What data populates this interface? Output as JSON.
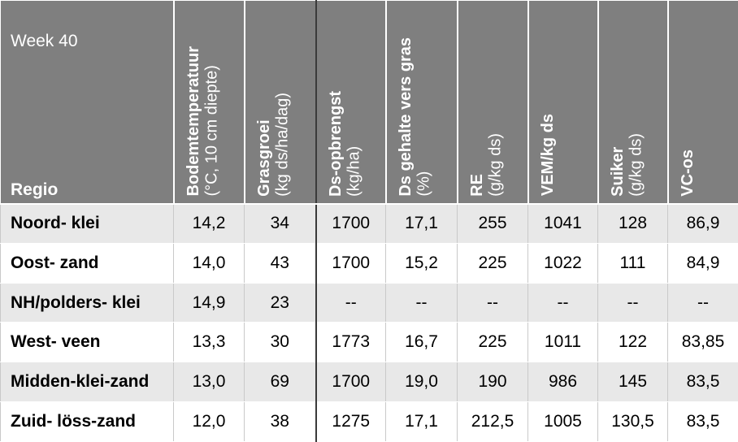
{
  "header": {
    "week": "Week 40",
    "region_label": "Regio",
    "columns": [
      {
        "bold": "Bodemtemperatuur",
        "normal": "(°C, 10 cm diepte)"
      },
      {
        "bold": "Grasgroei",
        "normal": "(kg ds/ha/dag)"
      },
      {
        "bold": "Ds-opbrengst",
        "normal": "(kg/ha)"
      },
      {
        "bold": "Ds gehalte vers gras",
        "normal": "(%)"
      },
      {
        "bold": "RE",
        "normal": "(g/kg ds)"
      },
      {
        "bold": "VEM/kg ds",
        "normal": ""
      },
      {
        "bold": "Suiker",
        "normal": "(g/kg ds)"
      },
      {
        "bold": "VC-os",
        "normal": ""
      }
    ]
  },
  "rows": [
    {
      "region": "Noord- klei",
      "values": [
        "14,2",
        "34",
        "1700",
        "17,1",
        "255",
        "1041",
        "128",
        "86,9"
      ]
    },
    {
      "region": "Oost- zand",
      "values": [
        "14,0",
        "43",
        "1700",
        "15,2",
        "225",
        "1022",
        "111",
        "84,9"
      ]
    },
    {
      "region": "NH/polders- klei",
      "values": [
        "14,9",
        "23",
        "--",
        "--",
        "--",
        "--",
        "--",
        "--"
      ]
    },
    {
      "region": "West- veen",
      "values": [
        "13,3",
        "30",
        "1773",
        "16,7",
        "225",
        "1011",
        "122",
        "83,85"
      ]
    },
    {
      "region": "Midden-klei-zand",
      "values": [
        "13,0",
        "69",
        "1700",
        "19,0",
        "190",
        "986",
        "145",
        "83,5"
      ]
    },
    {
      "region": "Zuid- löss-zand",
      "values": [
        "12,0",
        "38",
        "1275",
        "17,1",
        "212,5",
        "1005",
        "130,5",
        "83,5"
      ]
    }
  ]
}
